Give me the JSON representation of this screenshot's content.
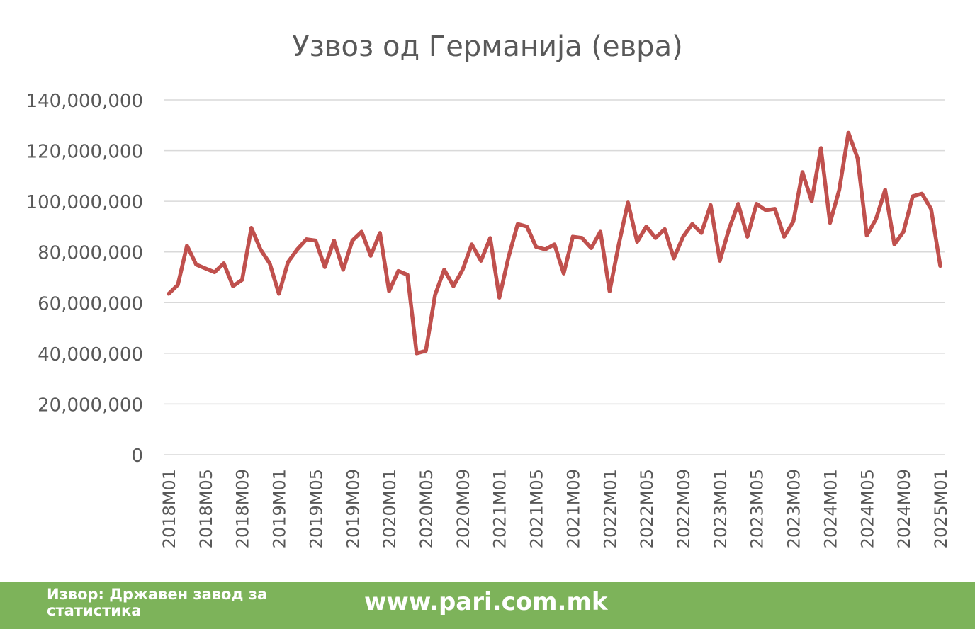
{
  "colors": {
    "line": "#c0504d",
    "footer_bg": "#7db35a"
  },
  "footer": {
    "source": "Извор: Државен завод за статистика",
    "website": "www.pari.com.mk"
  },
  "chart_data": {
    "type": "line",
    "title": "Узвоз од Германија (евра)",
    "xlabel": "",
    "ylabel": "",
    "ylim": [
      0,
      140000000
    ],
    "yticks": [
      0,
      20000000,
      40000000,
      60000000,
      80000000,
      100000000,
      120000000,
      140000000
    ],
    "ytick_labels": [
      "0",
      "20,000,000",
      "40,000,000",
      "60,000,000",
      "80,000,000",
      "100,000,000",
      "120,000,000",
      "140,000,000"
    ],
    "xtick_labels": [
      "2018M01",
      "2018M05",
      "2018M09",
      "2019M01",
      "2019M05",
      "2019M09",
      "2020M01",
      "2020M05",
      "2020M09",
      "2021M01",
      "2021M05",
      "2021M09",
      "2022M01",
      "2022M05",
      "2022M09",
      "2023M01",
      "2023M05",
      "2023M09",
      "2024M01",
      "2024M05",
      "2024M09",
      "2025M01"
    ],
    "grid": true,
    "legend": "none",
    "x": [
      "2018M01",
      "2018M02",
      "2018M03",
      "2018M04",
      "2018M05",
      "2018M06",
      "2018M07",
      "2018M08",
      "2018M09",
      "2018M10",
      "2018M11",
      "2018M12",
      "2019M01",
      "2019M02",
      "2019M03",
      "2019M04",
      "2019M05",
      "2019M06",
      "2019M07",
      "2019M08",
      "2019M09",
      "2019M10",
      "2019M11",
      "2019M12",
      "2020M01",
      "2020M02",
      "2020M03",
      "2020M04",
      "2020M05",
      "2020M06",
      "2020M07",
      "2020M08",
      "2020M09",
      "2020M10",
      "2020M11",
      "2020M12",
      "2021M01",
      "2021M02",
      "2021M03",
      "2021M04",
      "2021M05",
      "2021M06",
      "2021M07",
      "2021M08",
      "2021M09",
      "2021M10",
      "2021M11",
      "2021M12",
      "2022M01",
      "2022M02",
      "2022M03",
      "2022M04",
      "2022M05",
      "2022M06",
      "2022M07",
      "2022M08",
      "2022M09",
      "2022M10",
      "2022M11",
      "2022M12",
      "2023M01",
      "2023M02",
      "2023M03",
      "2023M04",
      "2023M05",
      "2023M06",
      "2023M07",
      "2023M08",
      "2023M09",
      "2023M10",
      "2023M11",
      "2023M12",
      "2024M01",
      "2024M02",
      "2024M03",
      "2024M04",
      "2024M05",
      "2024M06",
      "2024M07",
      "2024M08",
      "2024M09",
      "2024M10",
      "2024M11",
      "2024M12",
      "2025M01"
    ],
    "series": [
      {
        "values": [
          63500000,
          67000000,
          82500000,
          75000000,
          73500000,
          72000000,
          75500000,
          66500000,
          69000000,
          89500000,
          81000000,
          75500000,
          63500000,
          76000000,
          81000000,
          85000000,
          84500000,
          74000000,
          84500000,
          73000000,
          84500000,
          88000000,
          78500000,
          87500000,
          64500000,
          72500000,
          71000000,
          40000000,
          41000000,
          63000000,
          73000000,
          66500000,
          73000000,
          83000000,
          76500000,
          85500000,
          62000000,
          78000000,
          91000000,
          90000000,
          82000000,
          81000000,
          83000000,
          71500000,
          86000000,
          85500000,
          81500000,
          88000000,
          64500000,
          83000000,
          99500000,
          84000000,
          90000000,
          85500000,
          89000000,
          77500000,
          86000000,
          91000000,
          87500000,
          98500000,
          76500000,
          89000000,
          99000000,
          86000000,
          99000000,
          96500000,
          97000000,
          86000000,
          92000000,
          111500000,
          100000000,
          121000000,
          91500000,
          104500000,
          127000000,
          117000000,
          86500000,
          93000000,
          104500000,
          83000000,
          88000000,
          102000000,
          103000000,
          97000000,
          74500000
        ]
      }
    ]
  }
}
